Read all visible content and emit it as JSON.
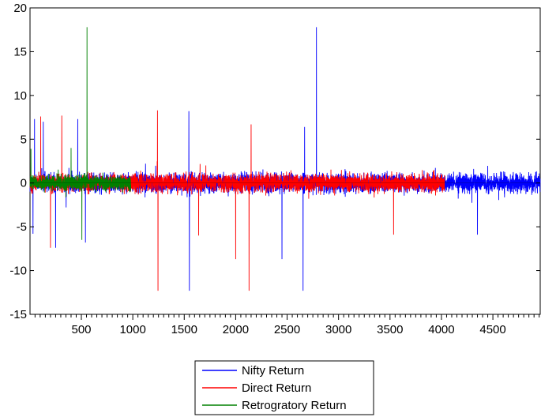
{
  "chart_data": {
    "type": "line",
    "title": "",
    "xlabel": "",
    "ylabel": "",
    "xlim": [
      1,
      4960
    ],
    "ylim": [
      -15,
      20
    ],
    "xticks": [
      500,
      1000,
      1500,
      2000,
      2500,
      3000,
      3500,
      4000,
      4500
    ],
    "yticks": [
      -15,
      -10,
      -5,
      0,
      5,
      10,
      15,
      20
    ],
    "grid": false,
    "legend_position": "bottom-center",
    "series": [
      {
        "name": "Nifty Return",
        "color": "#0000ff",
        "n_points": 4960,
        "baseline_amplitude": 1.6,
        "spikes": [
          {
            "x": 30,
            "y": -5.8
          },
          {
            "x": 45,
            "y": 7.3
          },
          {
            "x": 130,
            "y": 7.0
          },
          {
            "x": 250,
            "y": -7.4
          },
          {
            "x": 465,
            "y": 7.3
          },
          {
            "x": 540,
            "y": -6.8
          },
          {
            "x": 1545,
            "y": 8.2
          },
          {
            "x": 1550,
            "y": -12.3
          },
          {
            "x": 2450,
            "y": -8.7
          },
          {
            "x": 2655,
            "y": -12.3
          },
          {
            "x": 2670,
            "y": 6.4
          },
          {
            "x": 2785,
            "y": 17.8
          },
          {
            "x": 4350,
            "y": -5.9
          }
        ]
      },
      {
        "name": "Direct Return",
        "color": "#ff0000",
        "n_points": 4030,
        "baseline_amplitude": 1.5,
        "spikes": [
          {
            "x": 105,
            "y": 7.6
          },
          {
            "x": 200,
            "y": -7.4
          },
          {
            "x": 310,
            "y": 7.7
          },
          {
            "x": 1240,
            "y": 8.3
          },
          {
            "x": 1245,
            "y": -12.3
          },
          {
            "x": 1640,
            "y": -6.0
          },
          {
            "x": 2000,
            "y": -8.7
          },
          {
            "x": 2130,
            "y": -12.3
          },
          {
            "x": 2150,
            "y": 6.7
          },
          {
            "x": 3535,
            "y": -5.9
          }
        ]
      },
      {
        "name": "Retrogratory Return",
        "color": "#008000",
        "n_points": 980,
        "baseline_amplitude": 1.3,
        "spikes": [
          {
            "x": 10,
            "y": 3.9
          },
          {
            "x": 400,
            "y": 4.0
          },
          {
            "x": 505,
            "y": -6.5
          },
          {
            "x": 555,
            "y": 17.8
          }
        ]
      }
    ]
  }
}
